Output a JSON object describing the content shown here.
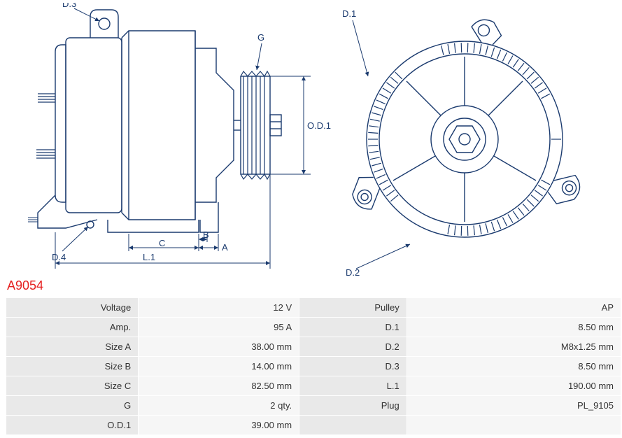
{
  "part_number": "A9054",
  "colors": {
    "stroke": "#1a3a6e",
    "label": "#1a3a6e",
    "part_number": "#e52020",
    "table_label_bg": "#e9e9e9",
    "table_value_bg": "#f6f6f6",
    "table_text": "#444444",
    "background": "#ffffff"
  },
  "diagram": {
    "stroke_width": 1.4,
    "font_size": 13,
    "side_view": {
      "labels": {
        "D3": "D.3",
        "D4": "D.4",
        "G": "G",
        "OD1": "O.D.1",
        "A": "A",
        "B": "B",
        "C": "C",
        "L1": "L.1"
      }
    },
    "front_view": {
      "labels": {
        "D1": "D.1",
        "D2": "D.2"
      }
    }
  },
  "specs_left": [
    {
      "label": "Voltage",
      "value": "12 V"
    },
    {
      "label": "Amp.",
      "value": "95 A"
    },
    {
      "label": "Size A",
      "value": "38.00 mm"
    },
    {
      "label": "Size B",
      "value": "14.00 mm"
    },
    {
      "label": "Size C",
      "value": "82.50 mm"
    },
    {
      "label": "G",
      "value": "2 qty."
    },
    {
      "label": "O.D.1",
      "value": "39.00 mm"
    }
  ],
  "specs_right": [
    {
      "label": "Pulley",
      "value": "AP"
    },
    {
      "label": "D.1",
      "value": "8.50 mm"
    },
    {
      "label": "D.2",
      "value": "M8x1.25 mm"
    },
    {
      "label": "D.3",
      "value": "8.50 mm"
    },
    {
      "label": "L.1",
      "value": "190.00 mm"
    },
    {
      "label": "Plug",
      "value": "PL_9105"
    },
    {
      "label": "",
      "value": ""
    }
  ]
}
